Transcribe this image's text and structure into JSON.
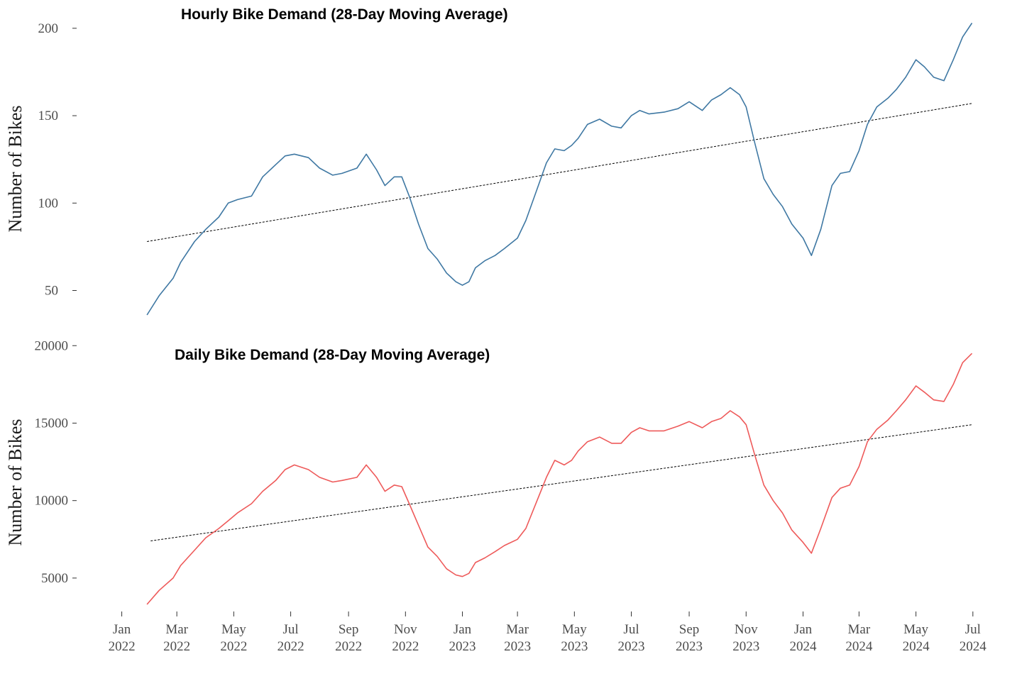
{
  "chart_data": [
    {
      "type": "line",
      "title": "Hourly Bike Demand (28-Day Moving Average)",
      "xlabel": "",
      "ylabel": "Number of Bikes",
      "y_ticks": [
        50,
        100,
        150,
        200
      ],
      "ylim": [
        36,
        204
      ],
      "xlim": [
        "2021-12-27",
        "2024-07-08"
      ],
      "grid": false,
      "color": "#3f78a3",
      "series": [
        {
          "x": [
            "2022-01-28",
            "2022-02-10",
            "2022-02-25",
            "2022-03-05",
            "2022-03-20",
            "2022-04-01",
            "2022-04-15",
            "2022-04-25",
            "2022-05-05",
            "2022-05-20",
            "2022-06-01",
            "2022-06-15",
            "2022-06-25",
            "2022-07-05",
            "2022-07-20",
            "2022-08-01",
            "2022-08-15",
            "2022-08-25",
            "2022-09-10",
            "2022-09-20",
            "2022-10-01",
            "2022-10-10",
            "2022-10-20",
            "2022-10-28",
            "2022-11-05",
            "2022-11-15",
            "2022-11-25",
            "2022-12-05",
            "2022-12-15",
            "2022-12-25",
            "2023-01-01",
            "2023-01-08",
            "2023-01-15",
            "2023-01-25",
            "2023-02-05",
            "2023-02-15",
            "2023-03-01",
            "2023-03-10",
            "2023-03-20",
            "2023-04-01",
            "2023-04-10",
            "2023-04-20",
            "2023-04-28",
            "2023-05-05",
            "2023-05-15",
            "2023-05-28",
            "2023-06-10",
            "2023-06-20",
            "2023-07-01",
            "2023-07-10",
            "2023-07-20",
            "2023-08-05",
            "2023-08-20",
            "2023-09-01",
            "2023-09-15",
            "2023-09-25",
            "2023-10-05",
            "2023-10-15",
            "2023-10-25",
            "2023-11-01",
            "2023-11-10",
            "2023-11-20",
            "2023-11-30",
            "2023-12-10",
            "2023-12-20",
            "2024-01-01",
            "2024-01-10",
            "2024-01-20",
            "2024-02-01",
            "2024-02-10",
            "2024-02-20",
            "2024-03-01",
            "2024-03-10",
            "2024-03-20",
            "2024-04-01",
            "2024-04-10",
            "2024-04-20",
            "2024-05-01",
            "2024-05-10",
            "2024-05-20",
            "2024-05-31",
            "2024-06-10",
            "2024-06-20",
            "2024-06-30"
          ],
          "values": [
            36,
            47,
            57,
            66,
            78,
            85,
            92,
            100,
            102,
            104,
            115,
            122,
            127,
            128,
            126,
            120,
            116,
            117,
            120,
            128,
            119,
            110,
            115,
            115,
            104,
            88,
            74,
            68,
            60,
            55,
            53,
            55,
            63,
            67,
            70,
            74,
            80,
            90,
            105,
            123,
            131,
            130,
            133,
            137,
            145,
            148,
            144,
            143,
            150,
            153,
            151,
            152,
            154,
            158,
            153,
            159,
            162,
            166,
            162,
            155,
            135,
            114,
            105,
            98,
            88,
            80,
            70,
            85,
            110,
            117,
            118,
            130,
            145,
            155,
            160,
            165,
            172,
            182,
            178,
            172,
            170,
            182,
            195,
            203
          ]
        }
      ],
      "trend": {
        "x": [
          "2022-01-28",
          "2024-06-30"
        ],
        "values": [
          78,
          157
        ],
        "style": "dashed"
      }
    },
    {
      "type": "line",
      "title": "Daily Bike Demand (28-Day Moving Average)",
      "xlabel": "",
      "ylabel": "Number of Bikes",
      "y_ticks": [
        5000,
        10000,
        15000,
        20000
      ],
      "ylim": [
        3300,
        19600
      ],
      "xlim": [
        "2021-12-27",
        "2024-07-08"
      ],
      "x_ticks": [
        {
          "x": "2022-01-01",
          "label": [
            "Jan",
            "2022"
          ]
        },
        {
          "x": "2022-03-01",
          "label": [
            "Mar",
            "2022"
          ]
        },
        {
          "x": "2022-05-01",
          "label": [
            "May",
            "2022"
          ]
        },
        {
          "x": "2022-07-01",
          "label": [
            "Jul",
            "2022"
          ]
        },
        {
          "x": "2022-09-01",
          "label": [
            "Sep",
            "2022"
          ]
        },
        {
          "x": "2022-11-01",
          "label": [
            "Nov",
            "2022"
          ]
        },
        {
          "x": "2023-01-01",
          "label": [
            "Jan",
            "2023"
          ]
        },
        {
          "x": "2023-03-01",
          "label": [
            "Mar",
            "2023"
          ]
        },
        {
          "x": "2023-05-01",
          "label": [
            "May",
            "2023"
          ]
        },
        {
          "x": "2023-07-01",
          "label": [
            "Jul",
            "2023"
          ]
        },
        {
          "x": "2023-09-01",
          "label": [
            "Sep",
            "2023"
          ]
        },
        {
          "x": "2023-11-01",
          "label": [
            "Nov",
            "2023"
          ]
        },
        {
          "x": "2024-01-01",
          "label": [
            "Jan",
            "2024"
          ]
        },
        {
          "x": "2024-03-01",
          "label": [
            "Mar",
            "2024"
          ]
        },
        {
          "x": "2024-05-01",
          "label": [
            "May",
            "2024"
          ]
        },
        {
          "x": "2024-07-01",
          "label": [
            "Jul",
            "2024"
          ]
        }
      ],
      "grid": false,
      "color": "#ee5a5a",
      "series": [
        {
          "x": [
            "2022-01-28",
            "2022-02-10",
            "2022-02-25",
            "2022-03-05",
            "2022-03-20",
            "2022-04-01",
            "2022-04-15",
            "2022-04-25",
            "2022-05-05",
            "2022-05-20",
            "2022-06-01",
            "2022-06-15",
            "2022-06-25",
            "2022-07-05",
            "2022-07-20",
            "2022-08-01",
            "2022-08-15",
            "2022-08-25",
            "2022-09-10",
            "2022-09-20",
            "2022-10-01",
            "2022-10-10",
            "2022-10-20",
            "2022-10-28",
            "2022-11-05",
            "2022-11-15",
            "2022-11-25",
            "2022-12-05",
            "2022-12-15",
            "2022-12-25",
            "2023-01-01",
            "2023-01-08",
            "2023-01-15",
            "2023-01-25",
            "2023-02-05",
            "2023-02-15",
            "2023-03-01",
            "2023-03-10",
            "2023-03-20",
            "2023-04-01",
            "2023-04-10",
            "2023-04-20",
            "2023-04-28",
            "2023-05-05",
            "2023-05-15",
            "2023-05-28",
            "2023-06-10",
            "2023-06-20",
            "2023-07-01",
            "2023-07-10",
            "2023-07-20",
            "2023-08-05",
            "2023-08-20",
            "2023-09-01",
            "2023-09-15",
            "2023-09-25",
            "2023-10-05",
            "2023-10-15",
            "2023-10-25",
            "2023-11-01",
            "2023-11-10",
            "2023-11-20",
            "2023-11-30",
            "2023-12-10",
            "2023-12-20",
            "2024-01-01",
            "2024-01-10",
            "2024-01-20",
            "2024-02-01",
            "2024-02-10",
            "2024-02-20",
            "2024-03-01",
            "2024-03-10",
            "2024-03-20",
            "2024-04-01",
            "2024-04-10",
            "2024-04-20",
            "2024-05-01",
            "2024-05-10",
            "2024-05-20",
            "2024-05-31",
            "2024-06-10",
            "2024-06-20",
            "2024-06-30"
          ],
          "values": [
            3300,
            4200,
            5000,
            5800,
            6800,
            7600,
            8200,
            8700,
            9200,
            9800,
            10600,
            11300,
            12000,
            12300,
            12000,
            11500,
            11200,
            11300,
            11500,
            12300,
            11500,
            10600,
            11000,
            10900,
            9800,
            8400,
            7000,
            6400,
            5600,
            5200,
            5100,
            5300,
            6000,
            6300,
            6700,
            7100,
            7500,
            8200,
            9700,
            11500,
            12600,
            12300,
            12600,
            13200,
            13800,
            14100,
            13700,
            13700,
            14400,
            14700,
            14500,
            14500,
            14800,
            15100,
            14700,
            15100,
            15300,
            15800,
            15400,
            14900,
            13000,
            11000,
            10000,
            9200,
            8100,
            7300,
            6600,
            8200,
            10200,
            10800,
            11000,
            12200,
            13800,
            14600,
            15200,
            15800,
            16500,
            17400,
            17000,
            16500,
            16400,
            17500,
            18900,
            19500
          ]
        }
      ],
      "trend": {
        "x": [
          "2022-02-01",
          "2024-06-30"
        ],
        "values": [
          7400,
          14900
        ],
        "style": "dashed"
      }
    }
  ]
}
